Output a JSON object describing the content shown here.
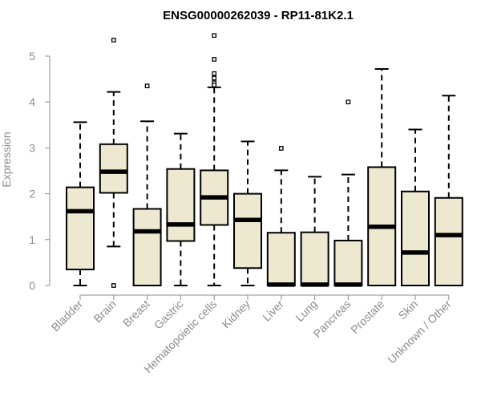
{
  "chart_data": {
    "type": "boxplot",
    "title": "ENSG00000262039 - RP11-81K2.1",
    "ylabel": "Expression",
    "xlabel": "",
    "ylim": [
      0,
      5.5
    ],
    "yticks": [
      0,
      1,
      2,
      3,
      4,
      5
    ],
    "grid": false,
    "legend": "none",
    "colors": {
      "box_fill": "#ede8d0",
      "stroke": "#000000",
      "axis": "#8c8c8c"
    },
    "categories": [
      "Bladder",
      "Brain",
      "Breast",
      "Gastric",
      "Hematopoietic cells",
      "Kidney",
      "Liver",
      "Lung",
      "Pancreas",
      "Prostate",
      "Skin",
      "Unknown / Other"
    ],
    "boxes": [
      {
        "category": "Bladder",
        "whisker_low": 0,
        "q1": 0.35,
        "median": 1.62,
        "q3": 2.14,
        "whisker_high": 3.56,
        "outliers": []
      },
      {
        "category": "Brain",
        "whisker_low": 0.85,
        "q1": 2.02,
        "median": 2.48,
        "q3": 3.08,
        "whisker_high": 4.22,
        "outliers": [
          5.35,
          0.0
        ]
      },
      {
        "category": "Breast",
        "whisker_low": 0,
        "q1": 0,
        "median": 1.18,
        "q3": 1.67,
        "whisker_high": 3.58,
        "outliers": [
          4.35
        ]
      },
      {
        "category": "Gastric",
        "whisker_low": 0,
        "q1": 0.97,
        "median": 1.33,
        "q3": 2.54,
        "whisker_high": 3.31,
        "outliers": []
      },
      {
        "category": "Hematopoietic cells",
        "whisker_low": 0,
        "q1": 1.32,
        "median": 1.92,
        "q3": 2.51,
        "whisker_high": 4.32,
        "outliers": [
          5.45,
          4.93,
          4.62,
          4.52,
          4.42,
          4.37
        ]
      },
      {
        "category": "Kidney",
        "whisker_low": 0,
        "q1": 0.38,
        "median": 1.43,
        "q3": 2.0,
        "whisker_high": 3.14,
        "outliers": []
      },
      {
        "category": "Liver",
        "whisker_low": 0,
        "q1": 0,
        "median": 0.02,
        "q3": 1.15,
        "whisker_high": 2.51,
        "outliers": [
          2.99
        ]
      },
      {
        "category": "Lung",
        "whisker_low": 0,
        "q1": 0,
        "median": 0.02,
        "q3": 1.16,
        "whisker_high": 2.37,
        "outliers": []
      },
      {
        "category": "Pancreas",
        "whisker_low": 0,
        "q1": 0,
        "median": 0.02,
        "q3": 0.98,
        "whisker_high": 2.42,
        "outliers": [
          4.0
        ]
      },
      {
        "category": "Prostate",
        "whisker_low": 0,
        "q1": 0,
        "median": 1.28,
        "q3": 2.58,
        "whisker_high": 4.72,
        "outliers": []
      },
      {
        "category": "Skin",
        "whisker_low": 0,
        "q1": 0,
        "median": 0.72,
        "q3": 2.05,
        "whisker_high": 3.4,
        "outliers": []
      },
      {
        "category": "Unknown / Other",
        "whisker_low": 0,
        "q1": 0,
        "median": 1.1,
        "q3": 1.91,
        "whisker_high": 4.14,
        "outliers": []
      }
    ]
  }
}
